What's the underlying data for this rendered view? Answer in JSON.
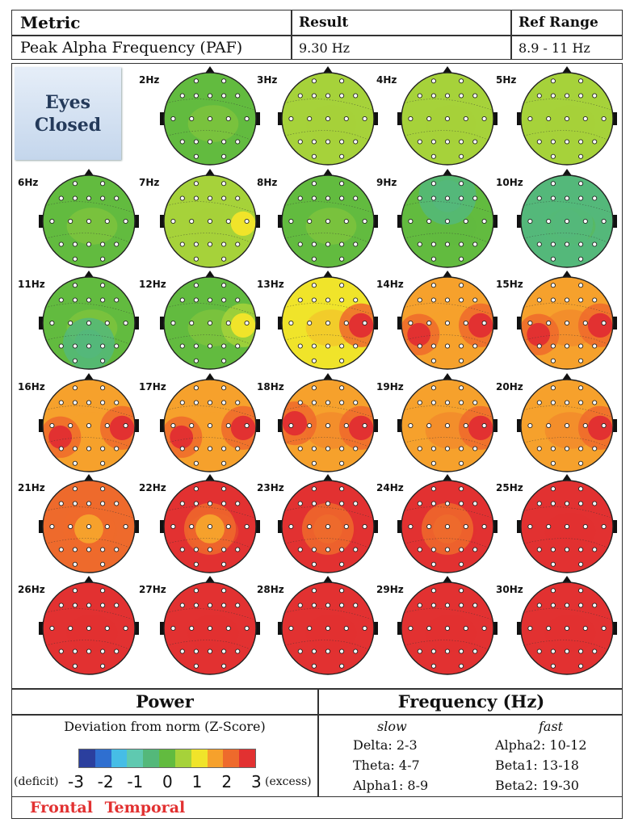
{
  "header": {
    "metric_label": "Metric",
    "result_label": "Result",
    "ref_label": "Ref Range",
    "metric_value": "Peak Alpha Frequency (PAF)",
    "result_value": "9.30 Hz",
    "ref_value": "8.9 - 11 Hz"
  },
  "badge": {
    "line1": "Eyes",
    "line2": "Closed"
  },
  "chart_data": {
    "type": "heatmap",
    "description_of_values": "dominant Z-score color per topographic map",
    "color_scale": {
      "min": -3,
      "max": 3,
      "colors": [
        "#2b3f9e",
        "#2f6fd0",
        "#46bde6",
        "#5fc9b0",
        "#54b87a",
        "#62bb3f",
        "#a6d23a",
        "#f0e42a",
        "#f6a12c",
        "#ee6a2c",
        "#e23131"
      ]
    },
    "maps": [
      {
        "label": "2Hz",
        "base": 0.3,
        "hot": []
      },
      {
        "label": "3Hz",
        "base": 0.5,
        "hot": []
      },
      {
        "label": "4Hz",
        "base": 0.6,
        "hot": []
      },
      {
        "label": "5Hz",
        "base": 0.35,
        "hot": []
      },
      {
        "label": "6Hz",
        "base": 0.3,
        "hot": []
      },
      {
        "label": "7Hz",
        "base": 0.5,
        "hot": [
          {
            "z": 1.2,
            "where": "right"
          }
        ]
      },
      {
        "label": "8Hz",
        "base": 0.2,
        "hot": []
      },
      {
        "label": "9Hz",
        "base": 0.0,
        "hot": [
          {
            "z": -0.8,
            "where": "frontal"
          }
        ]
      },
      {
        "label": "10Hz",
        "base": -0.4,
        "hot": [
          {
            "z": -0.9,
            "where": "center"
          }
        ]
      },
      {
        "label": "11Hz",
        "base": 0.1,
        "hot": [
          {
            "z": -0.9,
            "where": "occipital"
          }
        ]
      },
      {
        "label": "12Hz",
        "base": 0.2,
        "hot": [
          {
            "z": 1.2,
            "where": "right"
          }
        ]
      },
      {
        "label": "13Hz",
        "base": 1.3,
        "hot": [
          {
            "z": 3.0,
            "where": "right"
          }
        ]
      },
      {
        "label": "14Hz",
        "base": 1.8,
        "hot": [
          {
            "z": 3.0,
            "where": "right"
          },
          {
            "z": 3.0,
            "where": "left-low"
          }
        ]
      },
      {
        "label": "15Hz",
        "base": 1.9,
        "hot": [
          {
            "z": 3.0,
            "where": "right"
          },
          {
            "z": 3.0,
            "where": "left-low"
          }
        ]
      },
      {
        "label": "16Hz",
        "base": 1.6,
        "hot": [
          {
            "z": 3.0,
            "where": "right"
          },
          {
            "z": 3.0,
            "where": "left-low"
          }
        ]
      },
      {
        "label": "17Hz",
        "base": 1.6,
        "hot": [
          {
            "z": 3.0,
            "where": "right"
          },
          {
            "z": 3.0,
            "where": "left-low"
          }
        ]
      },
      {
        "label": "18Hz",
        "base": 2.0,
        "hot": [
          {
            "z": 3.0,
            "where": "right"
          },
          {
            "z": 3.0,
            "where": "left"
          }
        ]
      },
      {
        "label": "19Hz",
        "base": 1.9,
        "hot": [
          {
            "z": 3.0,
            "where": "right"
          }
        ]
      },
      {
        "label": "20Hz",
        "base": 2.0,
        "hot": [
          {
            "z": 3.0,
            "where": "right"
          }
        ]
      },
      {
        "label": "21Hz",
        "base": 2.6,
        "hot": [
          {
            "z": 1.7,
            "where": "center"
          }
        ]
      },
      {
        "label": "22Hz",
        "base": 2.9,
        "hot": [
          {
            "z": 1.8,
            "where": "center"
          }
        ]
      },
      {
        "label": "23Hz",
        "base": 3.0,
        "hot": [
          {
            "z": 2.2,
            "where": "center"
          }
        ]
      },
      {
        "label": "24Hz",
        "base": 3.0,
        "hot": [
          {
            "z": 2.3,
            "where": "center"
          }
        ]
      },
      {
        "label": "25Hz",
        "base": 3.0,
        "hot": []
      },
      {
        "label": "26Hz",
        "base": 3.0,
        "hot": []
      },
      {
        "label": "27Hz",
        "base": 3.0,
        "hot": []
      },
      {
        "label": "28Hz",
        "base": 3.0,
        "hot": []
      },
      {
        "label": "29Hz",
        "base": 3.0,
        "hot": []
      },
      {
        "label": "30Hz",
        "base": 3.0,
        "hot": []
      }
    ]
  },
  "legend": {
    "power_title": "Power",
    "frequency_title": "Frequency (Hz)",
    "deviation_label": "Deviation from norm (Z-Score)",
    "deficit_label": "(deficit)",
    "excess_label": "(excess)",
    "ticks": [
      "-3",
      "-2",
      "-1",
      "0",
      "1",
      "2",
      "3"
    ],
    "slow_label": "slow",
    "fast_label": "fast",
    "slow_bands": [
      "Delta:   2-3",
      "Theta:   4-7",
      "Alpha1: 8-9"
    ],
    "fast_bands": [
      "Alpha2: 10-12",
      "Beta1:   13-18",
      "Beta2:   19-30"
    ]
  },
  "footnote": "Frontal Temporal"
}
